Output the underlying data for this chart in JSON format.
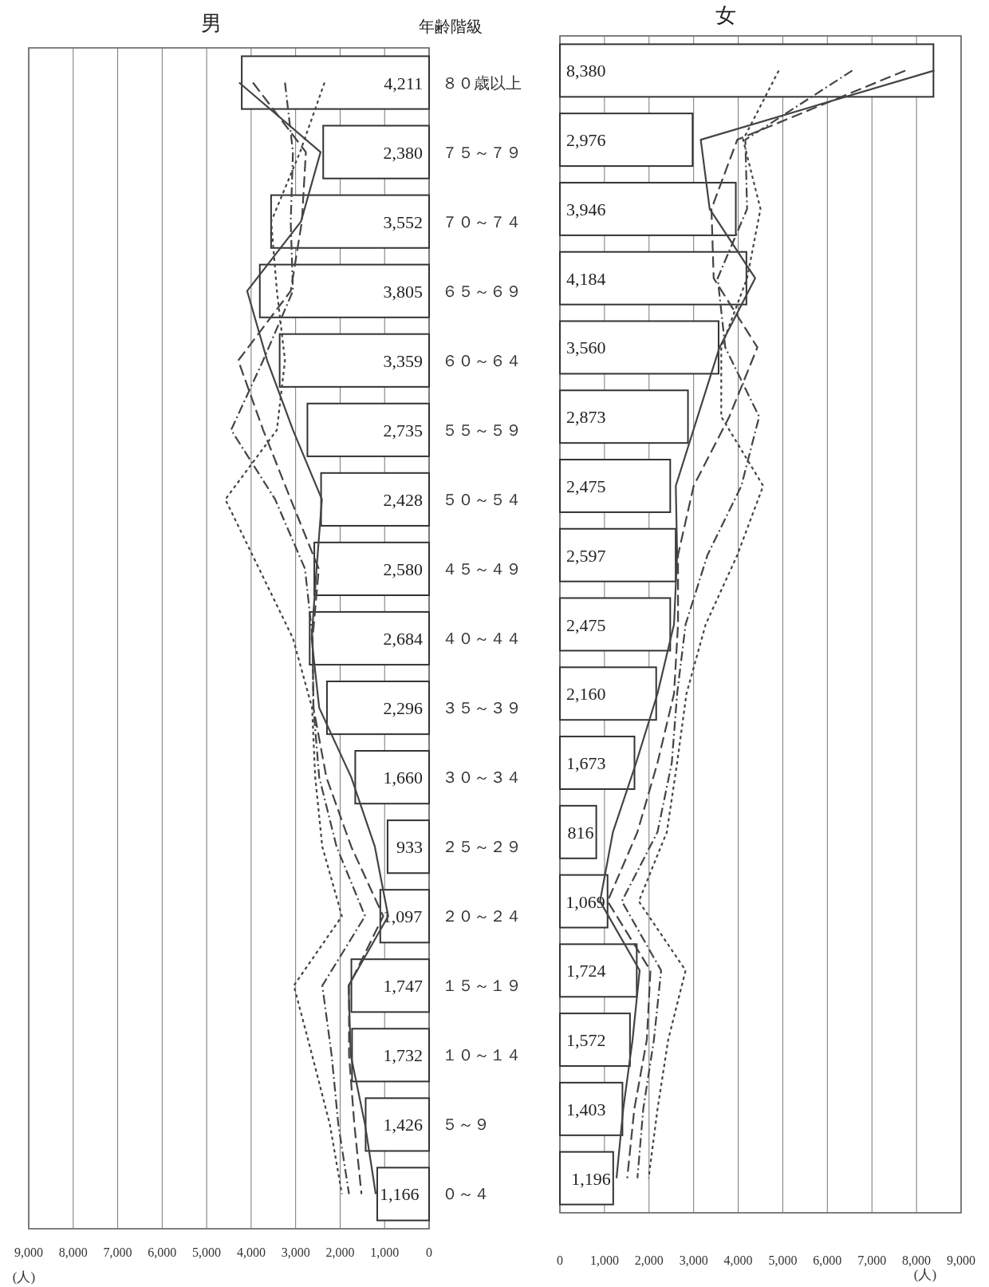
{
  "chart_data": [
    {
      "type": "bar",
      "orientation": "horizontal",
      "title": "男",
      "ylabel": "年齢階級",
      "xlabel": "(人)",
      "grid": "x",
      "categories": [
        "８０歳以上",
        "７５～７９",
        "７０～７４",
        "６５～６９",
        "６０～６４",
        "５５～５９",
        "５０～５４",
        "４５～４９",
        "４０～４４",
        "３５～３９",
        "３０～３４",
        "２５～２９",
        "２０～２４",
        "１５～１９",
        "１０～１４",
        "５～９",
        "０～４"
      ],
      "xlim": [
        9000,
        0
      ],
      "xticks": [
        {
          "value": 9000,
          "label": "9,000"
        },
        {
          "value": 8000,
          "label": "8,000"
        },
        {
          "value": 7000,
          "label": "7,000"
        },
        {
          "value": 6000,
          "label": "6,000"
        },
        {
          "value": 5000,
          "label": "5,000"
        },
        {
          "value": 4000,
          "label": "4,000"
        },
        {
          "value": 3000,
          "label": "3,000"
        },
        {
          "value": 2000,
          "label": "2,000"
        },
        {
          "value": 1000,
          "label": "1,000"
        },
        0
      ],
      "series": [
        {
          "type": "bar",
          "color": "#ffffff",
          "values": [
            4211,
            2380,
            3552,
            3805,
            3359,
            2735,
            2428,
            2580,
            2684,
            2296,
            1660,
            933,
            1097,
            1747,
            1732,
            1426,
            1166
          ],
          "value_labels": [
            "4,211",
            "2,380",
            "3,552",
            "3,805",
            "3,359",
            "2,735",
            "2,428",
            "2,580",
            "2,684",
            "2,296",
            "1,660",
            "933",
            "1,097",
            "1,747",
            "1,732",
            "1,426",
            "1,166"
          ]
        },
        {
          "type": "line",
          "line_style": "solid",
          "color": "#444444",
          "values": [
            4270,
            2440,
            2880,
            4090,
            3640,
            3060,
            2410,
            2530,
            2640,
            2470,
            1750,
            1220,
            920,
            1810,
            1760,
            1440,
            1200
          ]
        },
        {
          "type": "line",
          "line_style": "dashed",
          "color": "#444444",
          "values": [
            3960,
            2770,
            2860,
            3110,
            4290,
            3730,
            3110,
            2480,
            2620,
            2600,
            2310,
            1750,
            1030,
            1800,
            1800,
            1680,
            1520
          ]
        },
        {
          "type": "line",
          "line_style": "dashdot",
          "color": "#444444",
          "values": [
            3240,
            3060,
            3110,
            3060,
            3730,
            4450,
            3460,
            2790,
            2620,
            2600,
            2470,
            2080,
            1440,
            2400,
            2190,
            2040,
            1800
          ]
        },
        {
          "type": "line",
          "line_style": "dotted",
          "color": "#444444",
          "values": [
            2350,
            2900,
            3550,
            3420,
            3240,
            3420,
            4580,
            3820,
            3060,
            2630,
            2560,
            2400,
            1960,
            3040,
            2630,
            2230,
            1960
          ]
        }
      ]
    },
    {
      "type": "bar",
      "orientation": "horizontal",
      "title": "女",
      "xlabel": "(人)",
      "grid": "x",
      "tick_labels": "x",
      "categories": [
        null,
        null,
        null,
        null,
        null,
        null,
        null,
        null,
        null,
        null,
        null,
        null,
        null,
        null,
        null,
        null,
        null
      ],
      "xlim": [
        0,
        9000
      ],
      "xticks": [
        0,
        {
          "value": 1000,
          "label": "1,000"
        },
        {
          "value": 2000,
          "label": "2,000"
        },
        {
          "value": 3000,
          "label": "3,000"
        },
        {
          "value": 4000,
          "label": "4,000"
        },
        {
          "value": 5000,
          "label": "5,000"
        },
        {
          "value": 6000,
          "label": "6,000"
        },
        {
          "value": 7000,
          "label": "7,000"
        },
        {
          "value": 8000,
          "label": "8,000"
        },
        {
          "value": 9000,
          "label": "9,000"
        }
      ],
      "series": [
        {
          "type": "bar",
          "color": "#ffffff",
          "values": [
            8380,
            2976,
            3946,
            4184,
            3560,
            2873,
            2475,
            2597,
            2475,
            2160,
            1673,
            816,
            1069,
            1724,
            1572,
            1403,
            1196
          ],
          "value_labels": [
            "8,380",
            "2,976",
            "3,946",
            "4,184",
            "3,560",
            "2,873",
            "2,475",
            "2,597",
            "2,475",
            "2,160",
            "1,673",
            "816",
            "1,069",
            "1,724",
            "1,572",
            "1,403",
            "1,196"
          ]
        },
        {
          "type": "line",
          "line_style": "solid",
          "color": "#444444",
          "values": [
            8400,
            3160,
            3360,
            4380,
            3580,
            3090,
            2600,
            2630,
            2560,
            2190,
            1710,
            1190,
            900,
            1790,
            1630,
            1420,
            1270
          ]
        },
        {
          "type": "line",
          "line_style": "dashed",
          "color": "#444444",
          "values": [
            7750,
            3980,
            3400,
            3450,
            4430,
            3800,
            3000,
            2650,
            2650,
            2560,
            2190,
            1740,
            1070,
            2030,
            1950,
            1670,
            1510
          ]
        },
        {
          "type": "line",
          "line_style": "dashdot",
          "color": "#444444",
          "values": [
            6560,
            4160,
            4200,
            3540,
            3710,
            4470,
            4070,
            3310,
            2820,
            2630,
            2510,
            2190,
            1390,
            2270,
            2110,
            1870,
            1740
          ]
        },
        {
          "type": "line",
          "line_style": "dotted",
          "color": "#444444",
          "values": [
            4910,
            4110,
            4500,
            4200,
            3620,
            3620,
            4560,
            3980,
            3270,
            2840,
            2630,
            2400,
            1770,
            2820,
            2430,
            2190,
            1990
          ]
        }
      ]
    }
  ]
}
